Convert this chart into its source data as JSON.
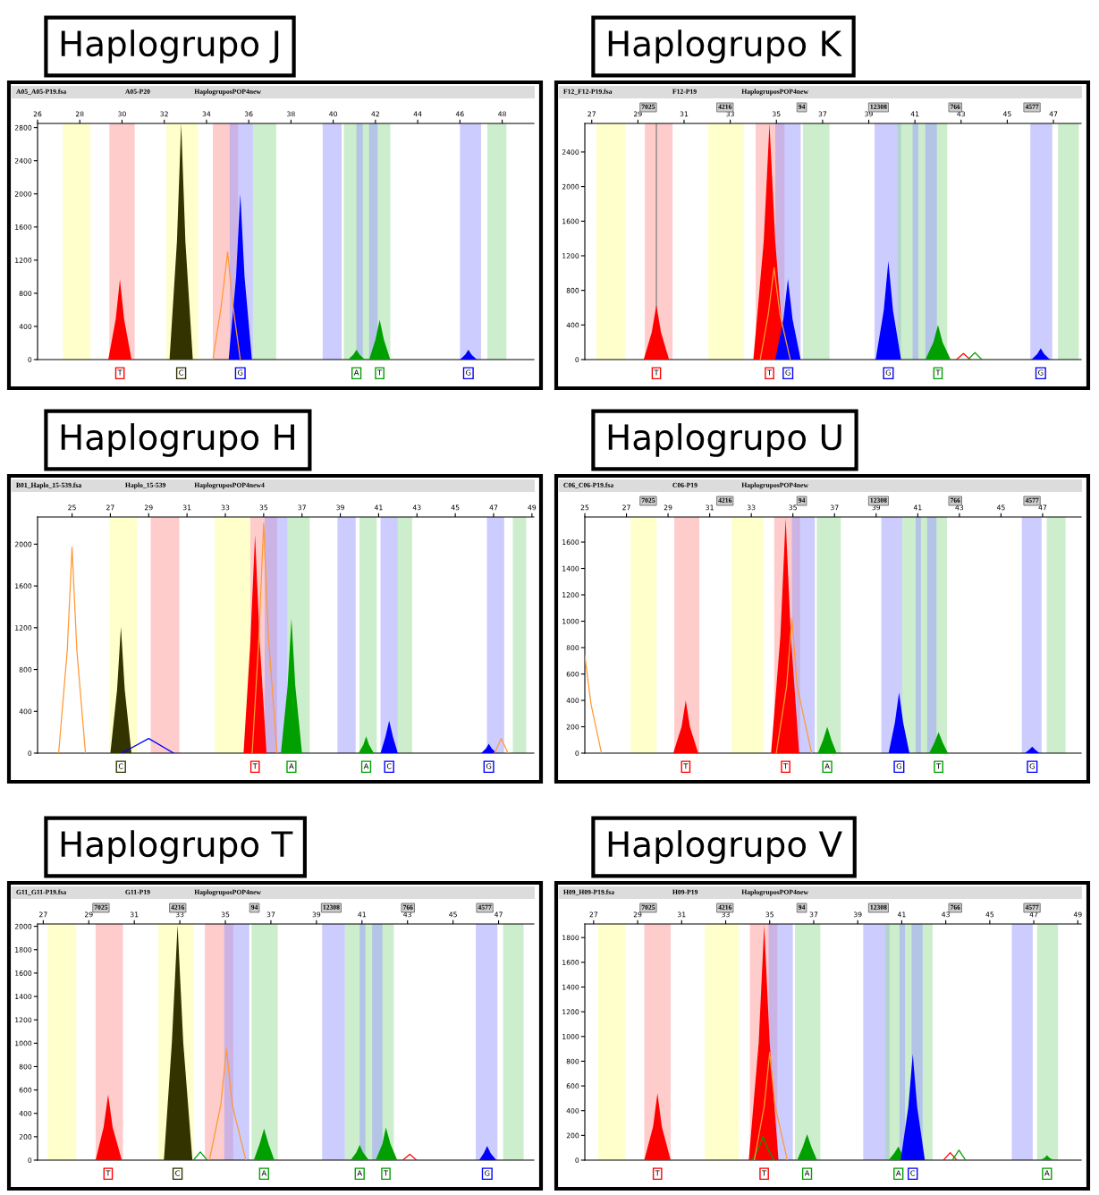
{
  "chart_data": [
    {
      "type": "area",
      "title": "Haplogrupo J",
      "xlim": [
        26,
        49.5
      ],
      "xticks": [
        26,
        28,
        30,
        32,
        34,
        36,
        38,
        40,
        42,
        44,
        46,
        48
      ],
      "ylim": [
        0,
        2850
      ],
      "yticks": [
        0,
        400,
        800,
        1200,
        1600,
        2000,
        2400,
        2800
      ],
      "bands": [
        {
          "axis": "x",
          "from": 27.2,
          "to": 28.5,
          "color": "#ffff99"
        },
        {
          "axis": "x",
          "from": 29.4,
          "to": 30.6,
          "color": "#ff9999"
        },
        {
          "axis": "x",
          "from": 32.1,
          "to": 33.6,
          "color": "#ffff99"
        },
        {
          "axis": "x",
          "from": 34.3,
          "to": 35.5,
          "color": "#ff9999"
        },
        {
          "axis": "x",
          "from": 35.1,
          "to": 36.2,
          "color": "#9999ff"
        },
        {
          "axis": "x",
          "from": 36.2,
          "to": 37.3,
          "color": "#99dd99"
        },
        {
          "axis": "x",
          "from": 39.5,
          "to": 40.4,
          "color": "#9999ff"
        },
        {
          "axis": "x",
          "from": 40.5,
          "to": 42.7,
          "color": "#99dd99"
        },
        {
          "axis": "x",
          "from": 41.1,
          "to": 41.4,
          "color": "#9999ff"
        },
        {
          "axis": "x",
          "from": 41.7,
          "to": 42.1,
          "color": "#9999ff"
        },
        {
          "axis": "x",
          "from": 46.0,
          "to": 47.0,
          "color": "#9999ff"
        },
        {
          "axis": "x",
          "from": 47.3,
          "to": 48.2,
          "color": "#99dd99"
        }
      ],
      "series": [
        {
          "type": "area",
          "color": "#ff0000",
          "x": [
            29.35,
            29.7,
            29.9,
            30.1,
            30.45
          ],
          "values": [
            0,
            485,
            970,
            485,
            0
          ]
        },
        {
          "type": "area",
          "color": "#333300",
          "x": [
            32.25,
            32.6,
            32.8,
            33.0,
            33.35
          ],
          "values": [
            0,
            1425,
            2850,
            1425,
            0
          ]
        },
        {
          "type": "line",
          "color": "#ff9933",
          "x": [
            34.3,
            34.7,
            35.0,
            35.25,
            35.6
          ],
          "values": [
            0,
            650,
            1300,
            650,
            0
          ]
        },
        {
          "type": "area",
          "color": "#0000ff",
          "x": [
            35.05,
            35.4,
            35.6,
            35.8,
            36.15
          ],
          "values": [
            0,
            1000,
            2000,
            1000,
            0
          ]
        },
        {
          "type": "area",
          "color": "#00a000",
          "x": [
            40.7,
            40.95,
            41.1,
            41.25,
            41.5
          ],
          "values": [
            0,
            60,
            120,
            60,
            0
          ]
        },
        {
          "type": "area",
          "color": "#00a000",
          "x": [
            41.7,
            42.0,
            42.2,
            42.4,
            42.7
          ],
          "values": [
            0,
            240,
            480,
            240,
            0
          ]
        },
        {
          "type": "area",
          "color": "#0000ff",
          "x": [
            46.0,
            46.25,
            46.4,
            46.55,
            46.8
          ],
          "values": [
            0,
            60,
            120,
            60,
            0
          ]
        }
      ],
      "annotations": [
        "A05_A05-P19.fsa",
        "A05-P20",
        "HaplogruposPOP4new",
        {
          "text": "T",
          "x": 29.9,
          "y": 0
        },
        {
          "text": "C",
          "x": 32.8,
          "y": 0
        },
        {
          "text": "G",
          "x": 35.6,
          "y": 0
        },
        {
          "text": "A",
          "x": 41.1,
          "y": 0
        },
        {
          "text": "T",
          "x": 42.2,
          "y": 0
        },
        {
          "text": "G",
          "x": 46.4,
          "y": 0
        }
      ]
    },
    {
      "type": "area",
      "title": "Haplogrupo K",
      "xlim": [
        26.7,
        48.2
      ],
      "xticks": [
        27,
        29,
        31,
        33,
        35,
        37,
        39,
        41,
        43,
        45,
        47
      ],
      "ylim": [
        0,
        2730
      ],
      "yticks": [
        0,
        400,
        800,
        1200,
        1600,
        2000,
        2400
      ],
      "ref_lines": [
        {
          "axis": "x",
          "value": 29.8,
          "color": "#888888"
        }
      ],
      "bands": [
        {
          "axis": "x",
          "from": 27.2,
          "to": 28.45,
          "color": "#ffff99"
        },
        {
          "axis": "x",
          "from": 29.3,
          "to": 30.5,
          "color": "#ff9999"
        },
        {
          "axis": "x",
          "from": 32.05,
          "to": 33.6,
          "color": "#ffff99"
        },
        {
          "axis": "x",
          "from": 34.1,
          "to": 35.35,
          "color": "#ff9999"
        },
        {
          "axis": "x",
          "from": 34.95,
          "to": 36.05,
          "color": "#9999ff"
        },
        {
          "axis": "x",
          "from": 36.15,
          "to": 37.3,
          "color": "#99dd99"
        },
        {
          "axis": "x",
          "from": 39.25,
          "to": 40.4,
          "color": "#9999ff"
        },
        {
          "axis": "x",
          "from": 40.25,
          "to": 42.4,
          "color": "#99dd99"
        },
        {
          "axis": "x",
          "from": 40.9,
          "to": 41.15,
          "color": "#9999ff"
        },
        {
          "axis": "x",
          "from": 41.45,
          "to": 41.95,
          "color": "#9999ff"
        },
        {
          "axis": "x",
          "from": 46.0,
          "to": 46.95,
          "color": "#9999ff"
        },
        {
          "axis": "x",
          "from": 47.2,
          "to": 48.1,
          "color": "#99dd99"
        }
      ],
      "series": [
        {
          "type": "area",
          "color": "#ff0000",
          "x": [
            29.25,
            29.6,
            29.8,
            30.0,
            30.35
          ],
          "values": [
            0,
            315,
            630,
            315,
            0
          ]
        },
        {
          "type": "area",
          "color": "#ff0000",
          "x": [
            34.0,
            34.45,
            34.7,
            34.95,
            35.35
          ],
          "values": [
            0,
            1365,
            2730,
            1365,
            0
          ]
        },
        {
          "type": "line",
          "color": "#ff9933",
          "x": [
            34.3,
            34.65,
            34.9,
            35.15,
            35.6
          ],
          "values": [
            0,
            530,
            1060,
            530,
            0
          ]
        },
        {
          "type": "area",
          "color": "#0000ff",
          "x": [
            34.95,
            35.3,
            35.5,
            35.7,
            36.05
          ],
          "values": [
            0,
            465,
            930,
            465,
            0
          ]
        },
        {
          "type": "area",
          "color": "#0000ff",
          "x": [
            39.3,
            39.65,
            39.85,
            40.05,
            40.4
          ],
          "values": [
            0,
            570,
            1140,
            570,
            0
          ]
        },
        {
          "type": "area",
          "color": "#00a000",
          "x": [
            41.45,
            41.8,
            42.0,
            42.2,
            42.55
          ],
          "values": [
            0,
            200,
            400,
            200,
            0
          ]
        },
        {
          "type": "line",
          "color": "#ff0000",
          "x": [
            42.8,
            43.1,
            43.4
          ],
          "values": [
            0,
            70,
            0
          ]
        },
        {
          "type": "line",
          "color": "#00a000",
          "x": [
            43.3,
            43.6,
            43.9
          ],
          "values": [
            0,
            80,
            0
          ]
        },
        {
          "type": "area",
          "color": "#0000ff",
          "x": [
            46.05,
            46.3,
            46.45,
            46.6,
            46.85
          ],
          "values": [
            0,
            65,
            130,
            65,
            0
          ]
        }
      ],
      "annotations": [
        "F12_F12-P19.fsa",
        "F12-P19",
        "HaplogruposPOP4new",
        "7025",
        "4216",
        "94",
        "12308",
        "766",
        "4577",
        {
          "text": "T",
          "x": 29.8,
          "y": 0
        },
        {
          "text": "T",
          "x": 34.7,
          "y": 0
        },
        {
          "text": "G",
          "x": 35.5,
          "y": 0
        },
        {
          "text": "G",
          "x": 39.85,
          "y": 0
        },
        {
          "text": "T",
          "x": 42.0,
          "y": 0
        },
        {
          "text": "G",
          "x": 46.45,
          "y": 0
        }
      ]
    },
    {
      "type": "area",
      "title": "Haplogrupo H",
      "xlim": [
        23.2,
        49.1
      ],
      "xticks": [
        25,
        27,
        29,
        31,
        33,
        35,
        37,
        39,
        41,
        43,
        45,
        47,
        49
      ],
      "ylim": [
        0,
        2260
      ],
      "yticks": [
        0,
        400,
        800,
        1200,
        1600,
        2000
      ],
      "bands": [
        {
          "axis": "x",
          "from": 26.95,
          "to": 28.4,
          "color": "#ffff99"
        },
        {
          "axis": "x",
          "from": 29.1,
          "to": 30.6,
          "color": "#ff9999"
        },
        {
          "axis": "x",
          "from": 32.45,
          "to": 34.3,
          "color": "#ffff99"
        },
        {
          "axis": "x",
          "from": 34.3,
          "to": 35.7,
          "color": "#ff9999"
        },
        {
          "axis": "x",
          "from": 35.05,
          "to": 36.25,
          "color": "#9999ff"
        },
        {
          "axis": "x",
          "from": 36.25,
          "to": 37.4,
          "color": "#99dd99"
        },
        {
          "axis": "x",
          "from": 38.85,
          "to": 39.8,
          "color": "#9999ff"
        },
        {
          "axis": "x",
          "from": 40.0,
          "to": 40.9,
          "color": "#99dd99"
        },
        {
          "axis": "x",
          "from": 41.1,
          "to": 42.0,
          "color": "#9999ff"
        },
        {
          "axis": "x",
          "from": 42.0,
          "to": 42.75,
          "color": "#99dd99"
        },
        {
          "axis": "x",
          "from": 46.65,
          "to": 47.55,
          "color": "#9999ff"
        },
        {
          "axis": "x",
          "from": 48.0,
          "to": 48.7,
          "color": "#99dd99"
        }
      ],
      "series": [
        {
          "type": "line",
          "color": "#ff9933",
          "x": [
            24.3,
            24.75,
            25.0,
            25.25,
            25.7
          ],
          "values": [
            0,
            985,
            1970,
            985,
            0
          ]
        },
        {
          "type": "area",
          "color": "#333300",
          "x": [
            27.0,
            27.35,
            27.55,
            27.75,
            28.1
          ],
          "values": [
            0,
            605,
            1210,
            605,
            0
          ]
        },
        {
          "type": "line",
          "color": "#0000ff",
          "x": [
            27.6,
            29.0,
            30.3
          ],
          "values": [
            0,
            140,
            0
          ]
        },
        {
          "type": "area",
          "color": "#ff0000",
          "x": [
            33.95,
            34.3,
            34.55,
            34.8,
            35.15
          ],
          "values": [
            0,
            1045,
            2090,
            1045,
            0
          ]
        },
        {
          "type": "line",
          "color": "#ff9933",
          "x": [
            34.4,
            34.75,
            35.0,
            35.25,
            35.7
          ],
          "values": [
            0,
            1100,
            2200,
            1100,
            0
          ]
        },
        {
          "type": "area",
          "color": "#00a000",
          "x": [
            35.9,
            36.25,
            36.45,
            36.65,
            37.0
          ],
          "values": [
            0,
            645,
            1290,
            645,
            0
          ]
        },
        {
          "type": "area",
          "color": "#00a000",
          "x": [
            39.95,
            40.2,
            40.35,
            40.5,
            40.75
          ],
          "values": [
            0,
            80,
            160,
            80,
            0
          ]
        },
        {
          "type": "area",
          "color": "#0000ff",
          "x": [
            41.1,
            41.35,
            41.55,
            41.75,
            42.0
          ],
          "values": [
            0,
            155,
            310,
            155,
            0
          ]
        },
        {
          "type": "area",
          "color": "#0000ff",
          "x": [
            46.35,
            46.6,
            46.75,
            46.9,
            47.15
          ],
          "values": [
            0,
            45,
            90,
            45,
            0
          ]
        },
        {
          "type": "line",
          "color": "#ff9933",
          "x": [
            47.05,
            47.4,
            47.75
          ],
          "values": [
            0,
            140,
            0
          ]
        }
      ],
      "annotations": [
        "B01_Haplo_15-539.fsa",
        "Haplo_15-539",
        "HaplogruposPOP4new4",
        {
          "text": "C",
          "x": 27.55,
          "y": 0
        },
        {
          "text": "T",
          "x": 34.55,
          "y": 0
        },
        {
          "text": "A",
          "x": 36.45,
          "y": 0
        },
        {
          "text": "A",
          "x": 40.35,
          "y": 0
        },
        {
          "text": "C",
          "x": 41.55,
          "y": 0
        },
        {
          "text": "G",
          "x": 46.75,
          "y": 0
        }
      ]
    },
    {
      "type": "area",
      "title": "Haplogrupo U",
      "xlim": [
        25,
        48.85
      ],
      "xticks": [
        25,
        27,
        29,
        31,
        33,
        35,
        37,
        39,
        41,
        43,
        45,
        47
      ],
      "ylim": [
        0,
        1790
      ],
      "yticks": [
        0,
        200,
        400,
        600,
        800,
        1000,
        1200,
        1400,
        1600
      ],
      "bands": [
        {
          "axis": "x",
          "from": 27.2,
          "to": 28.45,
          "color": "#ffff99"
        },
        {
          "axis": "x",
          "from": 29.3,
          "to": 30.5,
          "color": "#ff9999"
        },
        {
          "axis": "x",
          "from": 32.05,
          "to": 33.6,
          "color": "#ffff99"
        },
        {
          "axis": "x",
          "from": 34.1,
          "to": 35.35,
          "color": "#ff9999"
        },
        {
          "axis": "x",
          "from": 34.95,
          "to": 36.05,
          "color": "#9999ff"
        },
        {
          "axis": "x",
          "from": 36.15,
          "to": 37.3,
          "color": "#99dd99"
        },
        {
          "axis": "x",
          "from": 39.25,
          "to": 40.25,
          "color": "#9999ff"
        },
        {
          "axis": "x",
          "from": 40.25,
          "to": 42.4,
          "color": "#99dd99"
        },
        {
          "axis": "x",
          "from": 40.9,
          "to": 41.15,
          "color": "#9999ff"
        },
        {
          "axis": "x",
          "from": 41.45,
          "to": 41.9,
          "color": "#9999ff"
        },
        {
          "axis": "x",
          "from": 46.0,
          "to": 46.95,
          "color": "#9999ff"
        },
        {
          "axis": "x",
          "from": 47.2,
          "to": 48.1,
          "color": "#99dd99"
        }
      ],
      "series": [
        {
          "type": "line",
          "color": "#ff9933",
          "x": [
            25.0,
            25.3,
            25.8
          ],
          "values": [
            740,
            370,
            0
          ]
        },
        {
          "type": "area",
          "color": "#ff0000",
          "x": [
            29.25,
            29.65,
            29.85,
            30.05,
            30.45
          ],
          "values": [
            0,
            200,
            400,
            200,
            0
          ]
        },
        {
          "type": "area",
          "color": "#ff0000",
          "x": [
            33.95,
            34.4,
            34.65,
            34.9,
            35.3
          ],
          "values": [
            0,
            890,
            1780,
            890,
            0
          ]
        },
        {
          "type": "line",
          "color": "#ff9933",
          "x": [
            34.2,
            34.7,
            34.95,
            35.2,
            35.9
          ],
          "values": [
            0,
            510,
            1020,
            510,
            0
          ]
        },
        {
          "type": "area",
          "color": "#00a000",
          "x": [
            36.2,
            36.45,
            36.65,
            36.85,
            37.1
          ],
          "values": [
            0,
            100,
            200,
            100,
            0
          ]
        },
        {
          "type": "area",
          "color": "#0000ff",
          "x": [
            39.6,
            39.9,
            40.1,
            40.3,
            40.6
          ],
          "values": [
            0,
            230,
            460,
            230,
            0
          ]
        },
        {
          "type": "area",
          "color": "#00a000",
          "x": [
            41.55,
            41.8,
            42.0,
            42.2,
            42.45
          ],
          "values": [
            0,
            80,
            160,
            80,
            0
          ]
        },
        {
          "type": "area",
          "color": "#0000ff",
          "x": [
            46.15,
            46.35,
            46.5,
            46.65,
            46.85
          ],
          "values": [
            0,
            25,
            50,
            25,
            0
          ]
        }
      ],
      "annotations": [
        "C06_C06-P19.fsa",
        "C06-P19",
        "HaplogruposPOP4new",
        "7025",
        "4216",
        "94",
        "12308",
        "766",
        "4577",
        {
          "text": "T",
          "x": 29.85,
          "y": 0
        },
        {
          "text": "T",
          "x": 34.65,
          "y": 0
        },
        {
          "text": "A",
          "x": 36.65,
          "y": 0
        },
        {
          "text": "G",
          "x": 40.1,
          "y": 0
        },
        {
          "text": "T",
          "x": 42.0,
          "y": 0
        },
        {
          "text": "G",
          "x": 46.5,
          "y": 0
        }
      ]
    },
    {
      "type": "area",
      "title": "Haplogrupo T",
      "xlim": [
        26.75,
        48.55
      ],
      "xticks": [
        27,
        29,
        31,
        33,
        35,
        37,
        39,
        41,
        43,
        45,
        47
      ],
      "ylim": [
        0,
        2020
      ],
      "yticks": [
        0,
        200,
        400,
        600,
        800,
        1000,
        1200,
        1400,
        1600,
        1800,
        2000
      ],
      "bands": [
        {
          "axis": "x",
          "from": 27.2,
          "to": 28.45,
          "color": "#ffff99"
        },
        {
          "axis": "x",
          "from": 29.3,
          "to": 30.5,
          "color": "#ff9999"
        },
        {
          "axis": "x",
          "from": 32.05,
          "to": 33.6,
          "color": "#ffff99"
        },
        {
          "axis": "x",
          "from": 34.1,
          "to": 35.35,
          "color": "#ff9999"
        },
        {
          "axis": "x",
          "from": 34.95,
          "to": 36.05,
          "color": "#9999ff"
        },
        {
          "axis": "x",
          "from": 36.15,
          "to": 37.3,
          "color": "#99dd99"
        },
        {
          "axis": "x",
          "from": 39.25,
          "to": 40.25,
          "color": "#9999ff"
        },
        {
          "axis": "x",
          "from": 40.25,
          "to": 42.4,
          "color": "#99dd99"
        },
        {
          "axis": "x",
          "from": 40.9,
          "to": 41.15,
          "color": "#9999ff"
        },
        {
          "axis": "x",
          "from": 41.45,
          "to": 41.9,
          "color": "#9999ff"
        },
        {
          "axis": "x",
          "from": 46.0,
          "to": 46.95,
          "color": "#9999ff"
        },
        {
          "axis": "x",
          "from": 47.2,
          "to": 48.1,
          "color": "#99dd99"
        }
      ],
      "series": [
        {
          "type": "area",
          "color": "#ff0000",
          "x": [
            29.3,
            29.65,
            29.85,
            30.05,
            30.45
          ],
          "values": [
            0,
            280,
            560,
            280,
            0
          ]
        },
        {
          "type": "area",
          "color": "#333300",
          "x": [
            32.3,
            32.65,
            32.9,
            33.15,
            33.55
          ],
          "values": [
            0,
            1005,
            2010,
            1005,
            0
          ]
        },
        {
          "type": "line",
          "color": "#00a000",
          "x": [
            33.6,
            33.9,
            34.2
          ],
          "values": [
            0,
            70,
            0
          ]
        },
        {
          "type": "line",
          "color": "#ff9933",
          "x": [
            34.3,
            34.8,
            35.05,
            35.3,
            35.9
          ],
          "values": [
            0,
            475,
            950,
            475,
            0
          ]
        },
        {
          "type": "area",
          "color": "#00a000",
          "x": [
            36.25,
            36.5,
            36.7,
            36.9,
            37.15
          ],
          "values": [
            0,
            135,
            270,
            135,
            0
          ]
        },
        {
          "type": "area",
          "color": "#00a000",
          "x": [
            40.5,
            40.75,
            40.9,
            41.05,
            41.3
          ],
          "values": [
            0,
            65,
            130,
            65,
            0
          ]
        },
        {
          "type": "area",
          "color": "#00a000",
          "x": [
            41.6,
            41.9,
            42.05,
            42.25,
            42.55
          ],
          "values": [
            0,
            140,
            280,
            140,
            0
          ]
        },
        {
          "type": "line",
          "color": "#ff0000",
          "x": [
            42.8,
            43.1,
            43.4
          ],
          "values": [
            0,
            50,
            0
          ]
        },
        {
          "type": "area",
          "color": "#0000ff",
          "x": [
            46.15,
            46.35,
            46.5,
            46.65,
            46.9
          ],
          "values": [
            0,
            60,
            120,
            60,
            0
          ]
        }
      ],
      "annotations": [
        "G11_G11-P19.fsa",
        "G11-P19",
        "HaplogruposPOP4new",
        "7025",
        "4216",
        "94",
        "12308",
        "766",
        "4577",
        {
          "text": "T",
          "x": 29.85,
          "y": 0
        },
        {
          "text": "C",
          "x": 32.9,
          "y": 0
        },
        {
          "text": "A",
          "x": 36.7,
          "y": 0
        },
        {
          "text": "A",
          "x": 40.9,
          "y": 0
        },
        {
          "text": "T",
          "x": 42.05,
          "y": 0
        },
        {
          "text": "G",
          "x": 46.5,
          "y": 0
        }
      ]
    },
    {
      "type": "area",
      "title": "Haplogrupo V",
      "xlim": [
        26.6,
        49.15
      ],
      "xticks": [
        27,
        29,
        31,
        33,
        35,
        37,
        39,
        41,
        43,
        45,
        47,
        49
      ],
      "ylim": [
        0,
        1910
      ],
      "yticks": [
        0,
        200,
        400,
        600,
        800,
        1000,
        1200,
        1400,
        1600,
        1800
      ],
      "bands": [
        {
          "axis": "x",
          "from": 27.2,
          "to": 28.45,
          "color": "#ffff99"
        },
        {
          "axis": "x",
          "from": 29.3,
          "to": 30.5,
          "color": "#ff9999"
        },
        {
          "axis": "x",
          "from": 32.05,
          "to": 33.6,
          "color": "#ffff99"
        },
        {
          "axis": "x",
          "from": 34.1,
          "to": 35.35,
          "color": "#ff9999"
        },
        {
          "axis": "x",
          "from": 34.95,
          "to": 36.05,
          "color": "#9999ff"
        },
        {
          "axis": "x",
          "from": 36.15,
          "to": 37.3,
          "color": "#99dd99"
        },
        {
          "axis": "x",
          "from": 39.25,
          "to": 40.45,
          "color": "#9999ff"
        },
        {
          "axis": "x",
          "from": 40.25,
          "to": 42.4,
          "color": "#99dd99"
        },
        {
          "axis": "x",
          "from": 40.9,
          "to": 41.15,
          "color": "#9999ff"
        },
        {
          "axis": "x",
          "from": 41.45,
          "to": 41.95,
          "color": "#9999ff"
        },
        {
          "axis": "x",
          "from": 46.0,
          "to": 46.95,
          "color": "#9999ff"
        },
        {
          "axis": "x",
          "from": 47.15,
          "to": 48.1,
          "color": "#99dd99"
        }
      ],
      "series": [
        {
          "type": "area",
          "color": "#ff0000",
          "x": [
            29.3,
            29.7,
            29.9,
            30.1,
            30.5
          ],
          "values": [
            0,
            270,
            540,
            270,
            0
          ]
        },
        {
          "type": "area",
          "color": "#ff0000",
          "x": [
            34.05,
            34.5,
            34.75,
            35.0,
            35.4
          ],
          "values": [
            0,
            950,
            1900,
            950,
            0
          ]
        },
        {
          "type": "line",
          "color": "#00a000",
          "x": [
            34.2,
            34.5,
            34.7,
            34.9,
            35.2
          ],
          "values": [
            0,
            95,
            190,
            95,
            0
          ]
        },
        {
          "type": "line",
          "color": "#ff9933",
          "x": [
            34.3,
            34.75,
            35.0,
            35.25,
            35.8
          ],
          "values": [
            0,
            435,
            870,
            435,
            0
          ]
        },
        {
          "type": "area",
          "color": "#00a000",
          "x": [
            36.25,
            36.5,
            36.7,
            36.9,
            37.15
          ],
          "values": [
            0,
            105,
            210,
            105,
            0
          ]
        },
        {
          "type": "area",
          "color": "#00a000",
          "x": [
            40.4,
            40.65,
            40.85,
            41.0,
            41.2
          ],
          "values": [
            0,
            55,
            110,
            55,
            0
          ]
        },
        {
          "type": "area",
          "color": "#0000ff",
          "x": [
            40.95,
            41.3,
            41.5,
            41.7,
            42.05
          ],
          "values": [
            0,
            430,
            860,
            430,
            0
          ]
        },
        {
          "type": "line",
          "color": "#ff0000",
          "x": [
            42.9,
            43.2,
            43.5
          ],
          "values": [
            0,
            60,
            0
          ]
        },
        {
          "type": "line",
          "color": "#00a000",
          "x": [
            43.3,
            43.6,
            43.9
          ],
          "values": [
            0,
            80,
            0
          ]
        },
        {
          "type": "area",
          "color": "#00a000",
          "x": [
            47.3,
            47.5,
            47.6,
            47.7,
            47.9
          ],
          "values": [
            0,
            20,
            40,
            20,
            0
          ]
        }
      ],
      "annotations": [
        "H09_H09-P19.fsa",
        "H09-P19",
        "HaplogruposPOP4new",
        "7025",
        "4216",
        "94",
        "12308",
        "766",
        "4577",
        {
          "text": "T",
          "x": 29.9,
          "y": 0
        },
        {
          "text": "T",
          "x": 34.75,
          "y": 0
        },
        {
          "text": "A",
          "x": 36.7,
          "y": 0
        },
        {
          "text": "A",
          "x": 40.85,
          "y": 0
        },
        {
          "text": "C",
          "x": 41.5,
          "y": 0
        },
        {
          "text": "A",
          "x": 47.6,
          "y": 0
        }
      ]
    }
  ]
}
